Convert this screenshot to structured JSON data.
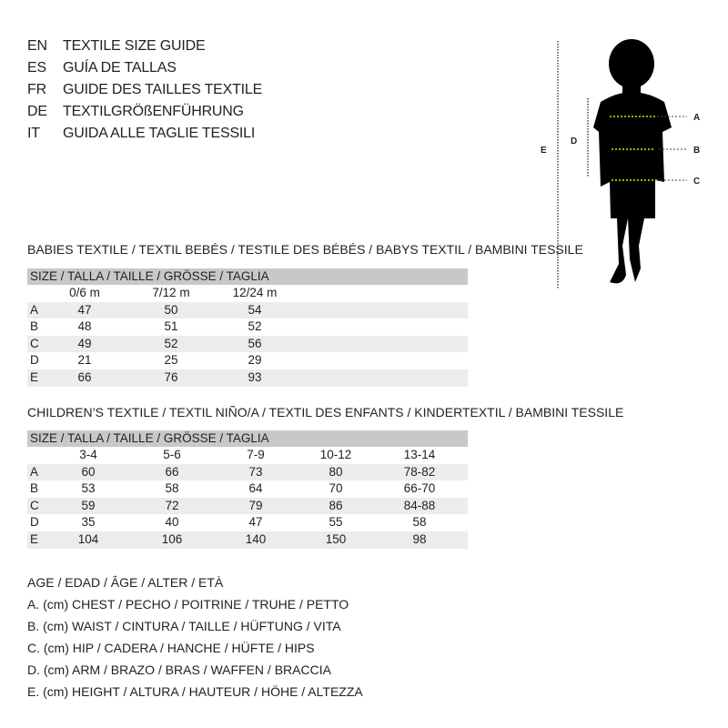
{
  "languages": [
    {
      "code": "EN",
      "title": "TEXTILE SIZE GUIDE"
    },
    {
      "code": "ES",
      "title": "GUÍA DE TALLAS"
    },
    {
      "code": "FR",
      "title": "GUIDE DES TAILLES TEXTILE"
    },
    {
      "code": "DE",
      "title": "TEXTILGRÖßENFÜHRUNG"
    },
    {
      "code": "IT",
      "title": "GUIDA ALLE TAGLIE TESSILI"
    }
  ],
  "figure": {
    "labels": {
      "a": "A",
      "b": "B",
      "c": "C",
      "d": "D",
      "e": "E"
    },
    "measure_line_color": "#e8e000"
  },
  "babies": {
    "title": "BABIES TEXTILE / TEXTIL BEBÉS / TESTILE DES BÉBÉS / BABYS TEXTIL / BAMBINI TESSILE",
    "size_header": "SIZE / TALLA / TAILLE / GRÖSSE / TAGLIA",
    "columns": [
      "0/6 m",
      "7/12 m",
      "12/24 m"
    ],
    "rows": [
      {
        "label": "A",
        "values": [
          "47",
          "50",
          "54"
        ]
      },
      {
        "label": "B",
        "values": [
          "48",
          "51",
          "52"
        ]
      },
      {
        "label": "C",
        "values": [
          "49",
          "52",
          "56"
        ]
      },
      {
        "label": "D",
        "values": [
          "21",
          "25",
          "29"
        ]
      },
      {
        "label": "E",
        "values": [
          "66",
          "76",
          "93"
        ]
      }
    ]
  },
  "children": {
    "title": "CHILDREN’S TEXTILE / TEXTIL NIÑO/A / TEXTIL DES ENFANTS / KINDERTEXTIL / BAMBINI TESSILE",
    "size_header": "SIZE / TALLA / TAILLE / GRÖSSE / TAGLIA",
    "columns": [
      "3-4",
      "5-6",
      "7-9",
      "10-12",
      "13-14"
    ],
    "rows": [
      {
        "label": "A",
        "values": [
          "60",
          "66",
          "73",
          "80",
          "78-82"
        ]
      },
      {
        "label": "B",
        "values": [
          "53",
          "58",
          "64",
          "70",
          "66-70"
        ]
      },
      {
        "label": "C",
        "values": [
          "59",
          "72",
          "79",
          "86",
          "84-88"
        ]
      },
      {
        "label": "D",
        "values": [
          "35",
          "40",
          "47",
          "55",
          "58"
        ]
      },
      {
        "label": "E",
        "values": [
          "104",
          "106",
          "140",
          "150",
          "98"
        ]
      }
    ]
  },
  "legend": [
    "AGE / EDAD / ÂGE / ALTER / ETÀ",
    "A. (cm) CHEST / PECHO / POITRINE / TRUHE / PETTO",
    "B. (cm) WAIST / CINTURA / TAILLE / HÜFTUNG / VITA",
    "C. (cm) HIP / CADERA / HANCHE / HÜFTE / HIPS",
    "D. (cm) ARM / BRAZO / BRAS / WAFFEN / BRACCIA",
    "E. (cm) HEIGHT / ALTURA / HAUTEUR / HÖHE / ALTEZZA"
  ]
}
